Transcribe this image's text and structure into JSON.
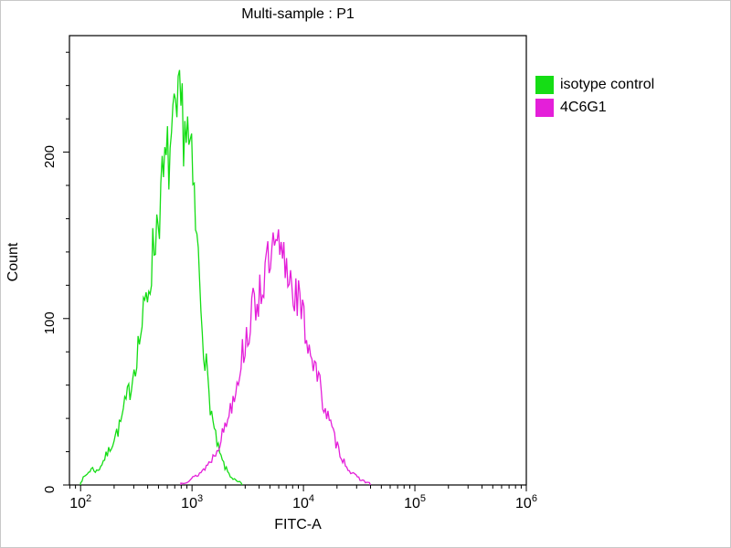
{
  "chart_data": {
    "type": "line",
    "title": "Multi-sample : P1",
    "xlabel": "FITC-A",
    "ylabel": "Count",
    "x_scale": "log",
    "xlim_log10": [
      1.9,
      6.0
    ],
    "x_ticks_exponents": [
      2,
      3,
      4,
      5,
      6
    ],
    "ylim": [
      0,
      270
    ],
    "y_major_ticks": [
      0,
      100,
      200
    ],
    "y_minor_step": 20,
    "grid": "off",
    "legend_position": "right-outside",
    "series": [
      {
        "name": "isotype control",
        "color": "#15dd15",
        "points_log10x_count": [
          [
            2.0,
            2
          ],
          [
            2.05,
            6
          ],
          [
            2.1,
            10
          ],
          [
            2.15,
            8
          ],
          [
            2.2,
            14
          ],
          [
            2.25,
            20
          ],
          [
            2.3,
            28
          ],
          [
            2.35,
            35
          ],
          [
            2.4,
            48
          ],
          [
            2.45,
            60
          ],
          [
            2.5,
            78
          ],
          [
            2.55,
            95
          ],
          [
            2.6,
            115
          ],
          [
            2.65,
            140
          ],
          [
            2.7,
            165
          ],
          [
            2.75,
            185
          ],
          [
            2.8,
            200
          ],
          [
            2.85,
            212
          ],
          [
            2.9,
            225
          ],
          [
            2.95,
            215
          ],
          [
            3.0,
            185
          ],
          [
            3.05,
            140
          ],
          [
            3.1,
            90
          ],
          [
            3.15,
            55
          ],
          [
            3.2,
            32
          ],
          [
            3.25,
            18
          ],
          [
            3.3,
            10
          ],
          [
            3.35,
            5
          ],
          [
            3.4,
            2
          ],
          [
            3.45,
            1
          ]
        ]
      },
      {
        "name": "4C6G1",
        "color": "#e41fd9",
        "points_log10x_count": [
          [
            2.9,
            1
          ],
          [
            2.95,
            2
          ],
          [
            3.0,
            4
          ],
          [
            3.05,
            6
          ],
          [
            3.1,
            9
          ],
          [
            3.15,
            13
          ],
          [
            3.2,
            18
          ],
          [
            3.25,
            26
          ],
          [
            3.3,
            36
          ],
          [
            3.35,
            48
          ],
          [
            3.4,
            62
          ],
          [
            3.45,
            78
          ],
          [
            3.5,
            92
          ],
          [
            3.55,
            105
          ],
          [
            3.6,
            116
          ],
          [
            3.65,
            126
          ],
          [
            3.7,
            133
          ],
          [
            3.75,
            140
          ],
          [
            3.8,
            136
          ],
          [
            3.85,
            131
          ],
          [
            3.9,
            122
          ],
          [
            3.95,
            112
          ],
          [
            4.0,
            98
          ],
          [
            4.05,
            85
          ],
          [
            4.1,
            72
          ],
          [
            4.15,
            58
          ],
          [
            4.2,
            45
          ],
          [
            4.25,
            34
          ],
          [
            4.3,
            24
          ],
          [
            4.35,
            16
          ],
          [
            4.4,
            10
          ],
          [
            4.45,
            6
          ],
          [
            4.5,
            4
          ],
          [
            4.55,
            2
          ],
          [
            4.6,
            1
          ]
        ]
      }
    ]
  }
}
